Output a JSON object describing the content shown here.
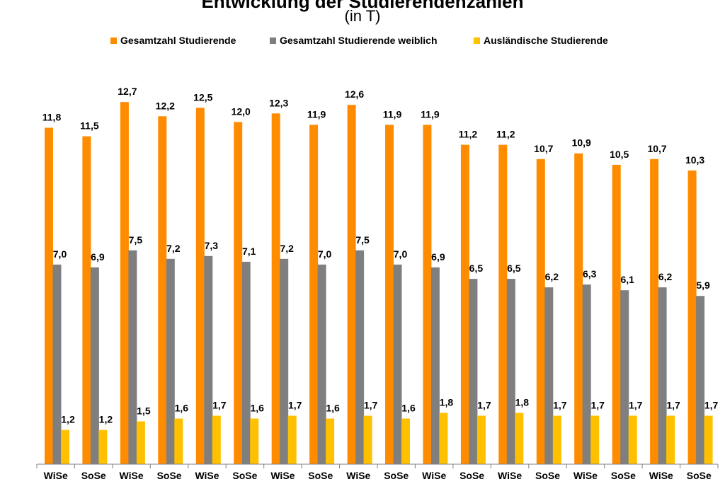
{
  "chart_data": {
    "type": "bar",
    "title": "Entwicklung der Studierendenzahlen",
    "subtitle": "(in T)",
    "categories": [
      "WiSe",
      "SoSe",
      "WiSe",
      "SoSe",
      "WiSe",
      "SoSe",
      "WiSe",
      "SoSe",
      "WiSe",
      "SoSe",
      "WiSe",
      "SoSe",
      "WiSe",
      "SoSe",
      "WiSe",
      "SoSe",
      "WiSe",
      "SoSe"
    ],
    "series": [
      {
        "name": "Gesamtzahl Studierende",
        "color": "#FF8C00",
        "values": [
          11.8,
          11.5,
          12.7,
          12.2,
          12.5,
          12.0,
          12.3,
          11.9,
          12.6,
          11.9,
          11.9,
          11.2,
          11.2,
          10.7,
          10.9,
          10.5,
          10.7,
          10.3
        ],
        "labels": [
          "11,8",
          "11,5",
          "12,7",
          "12,2",
          "12,5",
          "12,0",
          "12,3",
          "11,9",
          "12,6",
          "11,9",
          "11,9",
          "11,2",
          "11,2",
          "10,7",
          "10,9",
          "10,5",
          "10,7",
          "10,3"
        ]
      },
      {
        "name": "Gesamtzahl Studierende weiblich",
        "color": "#7F7F7F",
        "values": [
          7.0,
          6.9,
          7.5,
          7.2,
          7.3,
          7.1,
          7.2,
          7.0,
          7.5,
          7.0,
          6.9,
          6.5,
          6.5,
          6.2,
          6.3,
          6.1,
          6.2,
          5.9
        ],
        "labels": [
          "7,0",
          "6,9",
          "7,5",
          "7,2",
          "7,3",
          "7,1",
          "7,2",
          "7,0",
          "7,5",
          "7,0",
          "6,9",
          "6,5",
          "6,5",
          "6,2",
          "6,3",
          "6,1",
          "6,2",
          "5,9"
        ]
      },
      {
        "name": "Ausländische Studierende",
        "color": "#FFC000",
        "values": [
          1.2,
          1.2,
          1.5,
          1.6,
          1.7,
          1.6,
          1.7,
          1.6,
          1.7,
          1.6,
          1.8,
          1.7,
          1.8,
          1.7,
          1.7,
          1.7,
          1.7,
          1.7
        ],
        "labels": [
          "1,2",
          "1,2",
          "1,5",
          "1,6",
          "1,7",
          "1,6",
          "1,7",
          "1,6",
          "1,7",
          "1,6",
          "1,8",
          "1,7",
          "1,8",
          "1,7",
          "1,7",
          "1,7",
          "1,7",
          "1,7"
        ]
      }
    ],
    "ylim": [
      0,
      14
    ],
    "grid": false,
    "legend": "top"
  }
}
